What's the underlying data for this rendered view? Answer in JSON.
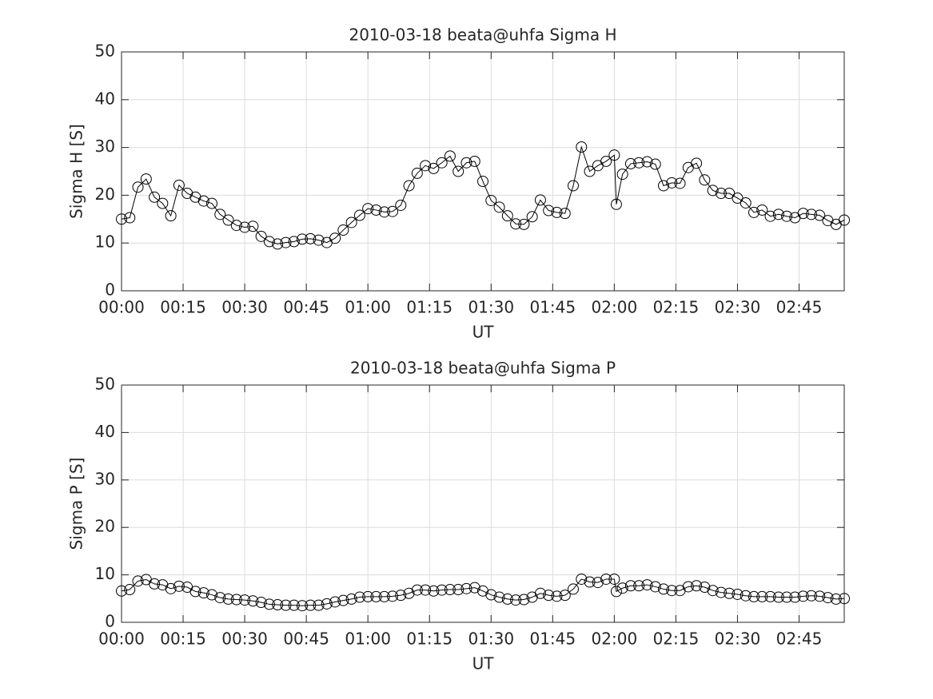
{
  "chart_data": [
    {
      "type": "line",
      "title": "2010-03-18  beata@uhfa Sigma H",
      "xlabel": "UT",
      "ylabel": "Sigma H [S]",
      "color": "#000000",
      "grid": true,
      "marker": "circle",
      "x": [
        0,
        2,
        4,
        6,
        8,
        10,
        12,
        14,
        16,
        18,
        20,
        22,
        24,
        26,
        28,
        30,
        32,
        34,
        36,
        38,
        40,
        42,
        44,
        46,
        48,
        50,
        52,
        54,
        56,
        58,
        60,
        62,
        64,
        66,
        68,
        70,
        72,
        74,
        76,
        78,
        80,
        82,
        84,
        86,
        88,
        90,
        92,
        94,
        96,
        98,
        100,
        102,
        104,
        106,
        108,
        110,
        112,
        114,
        116,
        118,
        120,
        120.5,
        122,
        124,
        126,
        128,
        130,
        132,
        134,
        136,
        138,
        140,
        142,
        144,
        146,
        148,
        150,
        152,
        154,
        156,
        158,
        160,
        162,
        164,
        166,
        168,
        170,
        172,
        174,
        176
      ],
      "values": [
        15.0,
        15.3,
        21.7,
        23.4,
        19.6,
        18.3,
        15.7,
        22.1,
        20.4,
        19.6,
        18.8,
        18.3,
        16.0,
        14.8,
        13.7,
        13.3,
        13.5,
        11.4,
        10.3,
        9.8,
        10.1,
        10.3,
        10.8,
        10.9,
        10.6,
        10.1,
        11.0,
        12.7,
        14.3,
        15.8,
        17.2,
        16.9,
        16.5,
        16.6,
        17.9,
        22.0,
        24.6,
        26.2,
        25.6,
        26.8,
        28.2,
        25.0,
        26.8,
        27.1,
        22.9,
        18.9,
        17.5,
        15.7,
        14.0,
        13.9,
        15.5,
        19.0,
        16.8,
        16.4,
        16.2,
        22.0,
        30.1,
        25.0,
        26.2,
        27.1,
        28.4,
        18.1,
        24.4,
        26.6,
        26.8,
        27.0,
        26.5,
        22.0,
        22.6,
        22.5,
        25.8,
        26.7,
        23.2,
        21.0,
        20.4,
        20.4,
        19.4,
        18.4,
        16.4,
        16.9,
        15.6,
        16.0,
        15.6,
        15.3,
        16.2,
        16.0,
        15.8,
        14.7,
        13.9,
        14.8
      ],
      "xlim": [
        0,
        176
      ],
      "ylim": [
        0,
        50
      ],
      "xticks": [
        {
          "value": 0,
          "label": "00:00"
        },
        {
          "value": 15,
          "label": "00:15"
        },
        {
          "value": 30,
          "label": "00:30"
        },
        {
          "value": 45,
          "label": "00:45"
        },
        {
          "value": 60,
          "label": "01:00"
        },
        {
          "value": 75,
          "label": "01:15"
        },
        {
          "value": 90,
          "label": "01:30"
        },
        {
          "value": 105,
          "label": "01:45"
        },
        {
          "value": 120,
          "label": "02:00"
        },
        {
          "value": 135,
          "label": "02:15"
        },
        {
          "value": 150,
          "label": "02:30"
        },
        {
          "value": 165,
          "label": "02:45"
        }
      ],
      "yticks": [
        0,
        10,
        20,
        30,
        40,
        50
      ]
    },
    {
      "type": "line",
      "title": "2010-03-18  beata@uhfa Sigma P",
      "xlabel": "UT",
      "ylabel": "Sigma P [S]",
      "color": "#000000",
      "grid": true,
      "marker": "circle",
      "x": [
        0,
        2,
        4,
        6,
        8,
        10,
        12,
        14,
        16,
        18,
        20,
        22,
        24,
        26,
        28,
        30,
        32,
        34,
        36,
        38,
        40,
        42,
        44,
        46,
        48,
        50,
        52,
        54,
        56,
        58,
        60,
        62,
        64,
        66,
        68,
        70,
        72,
        74,
        76,
        78,
        80,
        82,
        84,
        86,
        88,
        90,
        92,
        94,
        96,
        98,
        100,
        102,
        104,
        106,
        108,
        110,
        112,
        114,
        116,
        118,
        120,
        120.5,
        122,
        124,
        126,
        128,
        130,
        132,
        134,
        136,
        138,
        140,
        142,
        144,
        146,
        148,
        150,
        152,
        154,
        156,
        158,
        160,
        162,
        164,
        166,
        168,
        170,
        172,
        174,
        176
      ],
      "values": [
        6.6,
        6.9,
        8.7,
        9.0,
        8.1,
        7.9,
        7.1,
        7.6,
        7.4,
        6.5,
        6.2,
        5.8,
        5.2,
        4.9,
        4.8,
        4.7,
        4.5,
        4.2,
        3.8,
        3.7,
        3.6,
        3.6,
        3.5,
        3.6,
        3.6,
        3.9,
        4.3,
        4.6,
        4.9,
        5.3,
        5.4,
        5.4,
        5.4,
        5.5,
        5.7,
        6.1,
        6.8,
        6.8,
        6.6,
        6.8,
        6.9,
        6.9,
        7.1,
        7.3,
        6.6,
        5.8,
        5.3,
        4.9,
        4.7,
        4.8,
        5.3,
        6.1,
        5.7,
        5.5,
        5.7,
        7.0,
        9.1,
        8.5,
        8.4,
        9.1,
        9.1,
        6.5,
        7.2,
        7.7,
        7.7,
        7.9,
        7.5,
        7.0,
        6.7,
        6.7,
        7.5,
        7.7,
        7.4,
        6.7,
        6.3,
        6.1,
        5.9,
        5.6,
        5.4,
        5.4,
        5.4,
        5.3,
        5.3,
        5.3,
        5.5,
        5.6,
        5.5,
        5.2,
        4.9,
        5.0
      ],
      "xlim": [
        0,
        176
      ],
      "ylim": [
        0,
        50
      ],
      "xticks": [
        {
          "value": 0,
          "label": "00:00"
        },
        {
          "value": 15,
          "label": "00:15"
        },
        {
          "value": 30,
          "label": "00:30"
        },
        {
          "value": 45,
          "label": "00:45"
        },
        {
          "value": 60,
          "label": "01:00"
        },
        {
          "value": 75,
          "label": "01:15"
        },
        {
          "value": 90,
          "label": "01:30"
        },
        {
          "value": 105,
          "label": "01:45"
        },
        {
          "value": 120,
          "label": "02:00"
        },
        {
          "value": 135,
          "label": "02:15"
        },
        {
          "value": 150,
          "label": "02:30"
        },
        {
          "value": 165,
          "label": "02:45"
        }
      ],
      "yticks": [
        0,
        10,
        20,
        30,
        40,
        50
      ]
    }
  ]
}
